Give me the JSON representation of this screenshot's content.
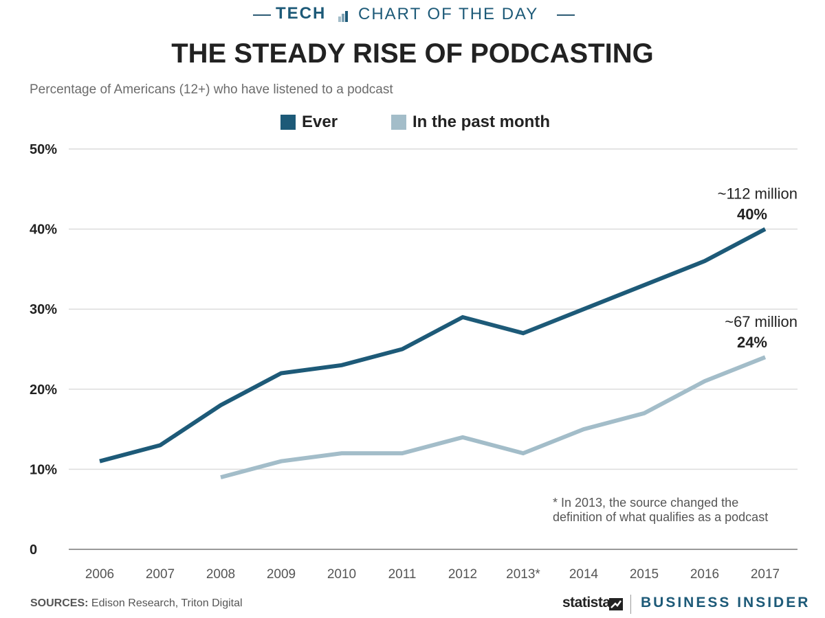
{
  "header": {
    "section": "TECH",
    "series_title": "CHART OF THE DAY"
  },
  "title": "THE STEADY RISE OF PODCASTING",
  "subtitle": "Percentage of Americans (12+) who have listened to a podcast",
  "legend": [
    {
      "label": "Ever",
      "color": "#1d5a78"
    },
    {
      "label": "In the past month",
      "color": "#a3bdc9"
    }
  ],
  "footnote": {
    "line1": "* In 2013, the source changed the",
    "line2": "definition of what qualifies as a podcast"
  },
  "footer": {
    "sources_label": "SOURCES:",
    "sources_text": "Edison Research, Triton Digital",
    "brand_left": "statista",
    "brand_right": "BUSINESS INSIDER"
  },
  "colors": {
    "ever": "#1d5a78",
    "past_month": "#a3bdc9",
    "grid": "#dcdcdc",
    "axis": "#999999",
    "text": "#222222"
  },
  "chart_data": {
    "type": "line",
    "categories": [
      "2006",
      "2007",
      "2008",
      "2009",
      "2010",
      "2011",
      "2012",
      "2013*",
      "2014",
      "2015",
      "2016",
      "2017"
    ],
    "series": [
      {
        "name": "Ever",
        "values": [
          11,
          13,
          18,
          22,
          23,
          25,
          29,
          27,
          30,
          33,
          36,
          40
        ]
      },
      {
        "name": "In the past month",
        "values": [
          null,
          null,
          9,
          11,
          12,
          12,
          14,
          12,
          15,
          17,
          21,
          24
        ]
      }
    ],
    "ylim": [
      0,
      50
    ],
    "yticks": [
      {
        "value": 0,
        "label": "0"
      },
      {
        "value": 10,
        "label": "10%"
      },
      {
        "value": 20,
        "label": "20%"
      },
      {
        "value": 30,
        "label": "30%"
      },
      {
        "value": 40,
        "label": "40%"
      },
      {
        "value": 50,
        "label": "50%"
      }
    ],
    "grid": true,
    "legend_position": "top-center",
    "annotations": [
      {
        "series": "Ever",
        "category": "2017",
        "line1": "~112 million",
        "line2": "40%"
      },
      {
        "series": "In the past month",
        "category": "2017",
        "line1": "~67 million",
        "line2": "24%"
      }
    ]
  }
}
